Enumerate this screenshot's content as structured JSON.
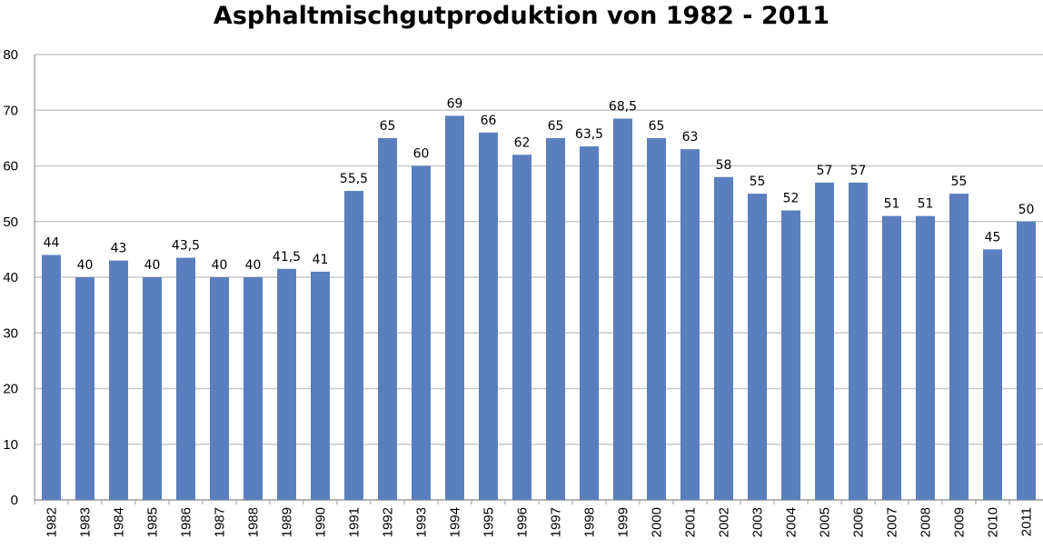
{
  "chart_data": {
    "type": "bar",
    "title": "Asphaltmischgutproduktion von 1982 - 2011",
    "categories": [
      "1982",
      "1983",
      "1984",
      "1985",
      "1986",
      "1987",
      "1988",
      "1989",
      "1990",
      "1991",
      "1992",
      "1993",
      "1994",
      "1995",
      "1996",
      "1997",
      "1998",
      "1999",
      "2000",
      "2001",
      "2002",
      "2003",
      "2004",
      "2005",
      "2006",
      "2007",
      "2008",
      "2009",
      "2010",
      "2011"
    ],
    "values": [
      44,
      40,
      43,
      40,
      43.5,
      40,
      40,
      41.5,
      41,
      55.5,
      65,
      60,
      69,
      66,
      62,
      65,
      63.5,
      68.5,
      65,
      63,
      58,
      55,
      52,
      57,
      57,
      51,
      51,
      55,
      45,
      50
    ],
    "value_labels": [
      "44",
      "40",
      "43",
      "40",
      "43,5",
      "40",
      "40",
      "41,5",
      "41",
      "55,5",
      "65",
      "60",
      "69",
      "66",
      "62",
      "65",
      "63,5",
      "68,5",
      "65",
      "63",
      "58",
      "55",
      "52",
      "57",
      "57",
      "51",
      "51",
      "55",
      "45",
      "50"
    ],
    "ylim": [
      0,
      80
    ],
    "yticks": [
      0,
      10,
      20,
      30,
      40,
      50,
      60,
      70,
      80
    ],
    "grid": true,
    "legend": "none",
    "xlabel": "",
    "ylabel": "",
    "bar_color": "#5B7FBE",
    "grid_color": "#C8C8C8"
  }
}
